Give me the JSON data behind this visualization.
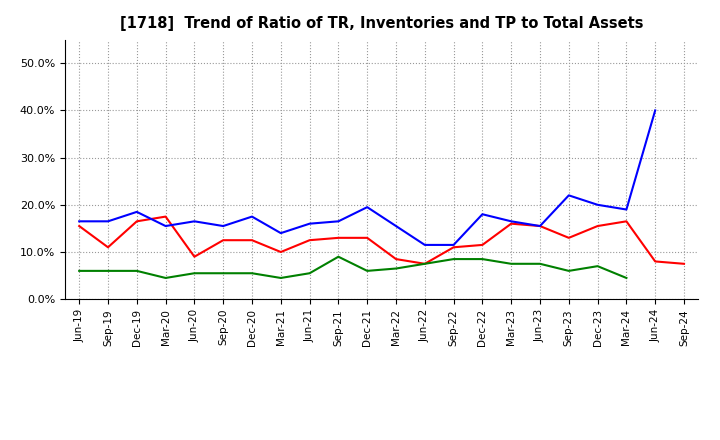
{
  "title": "[1718]  Trend of Ratio of TR, Inventories and TP to Total Assets",
  "x_labels": [
    "Jun-19",
    "Sep-19",
    "Dec-19",
    "Mar-20",
    "Jun-20",
    "Sep-20",
    "Dec-20",
    "Mar-21",
    "Jun-21",
    "Sep-21",
    "Dec-21",
    "Mar-22",
    "Jun-22",
    "Sep-22",
    "Dec-22",
    "Mar-23",
    "Jun-23",
    "Sep-23",
    "Dec-23",
    "Mar-24",
    "Jun-24",
    "Sep-24"
  ],
  "trade_receivables": [
    0.155,
    0.11,
    0.165,
    0.175,
    0.09,
    0.125,
    0.125,
    0.1,
    0.125,
    0.13,
    0.13,
    0.085,
    0.075,
    0.11,
    0.115,
    0.16,
    0.155,
    0.13,
    0.155,
    0.165,
    0.08,
    0.075
  ],
  "inventories": [
    0.165,
    0.165,
    0.185,
    0.155,
    0.165,
    0.155,
    0.175,
    0.14,
    0.16,
    0.165,
    0.195,
    0.155,
    0.115,
    0.115,
    0.18,
    0.165,
    0.155,
    0.22,
    0.2,
    0.19,
    0.4,
    null
  ],
  "trade_payables": [
    0.06,
    0.06,
    0.06,
    0.045,
    0.055,
    0.055,
    0.055,
    0.045,
    0.055,
    0.09,
    0.06,
    0.065,
    0.075,
    0.085,
    0.085,
    0.075,
    0.075,
    0.06,
    0.07,
    0.045,
    null,
    null
  ],
  "line_color_tr": "#ff0000",
  "line_color_inv": "#0000ff",
  "line_color_tp": "#008000",
  "ylim": [
    0.0,
    0.55
  ],
  "yticks": [
    0.0,
    0.1,
    0.2,
    0.3,
    0.4,
    0.5
  ],
  "background_color": "#ffffff",
  "grid_color": "#999999"
}
